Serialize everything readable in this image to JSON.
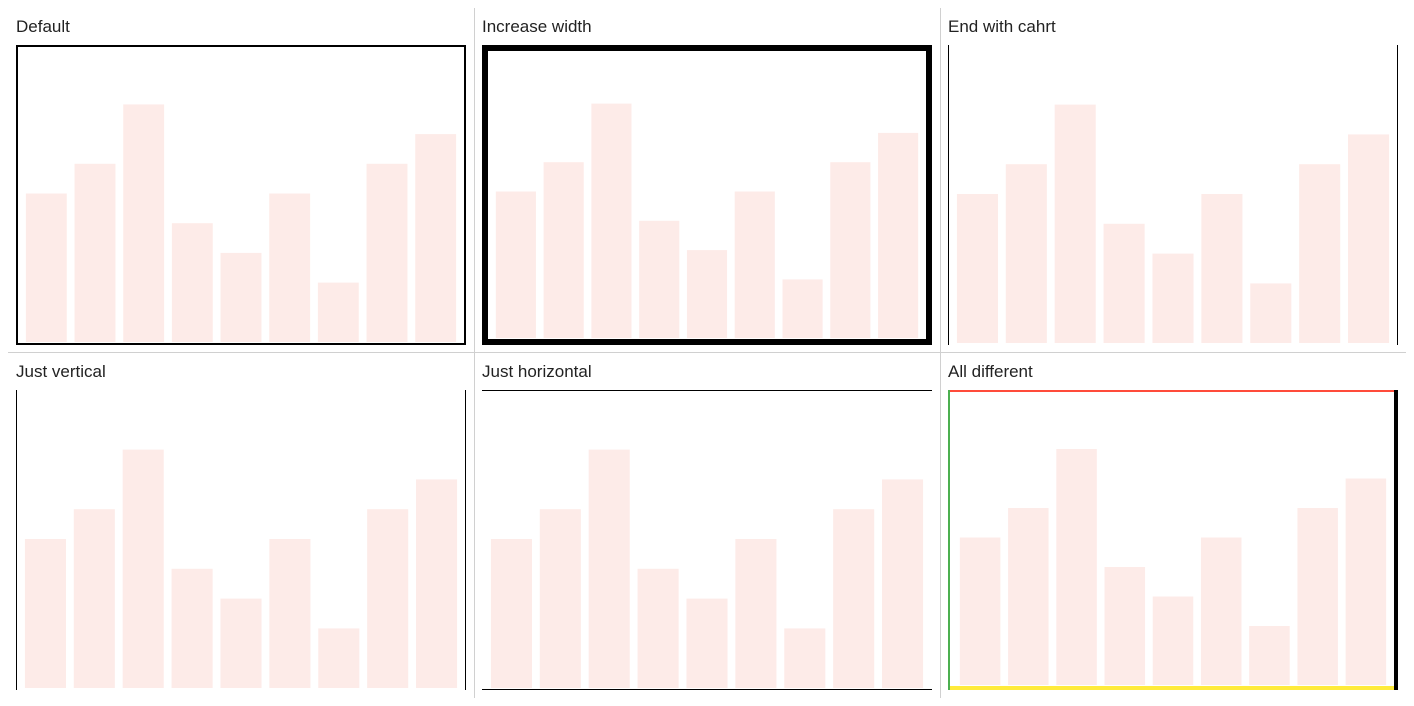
{
  "bar_color": "#fdebe8",
  "chart_data": [
    {
      "type": "bar",
      "title": "Default",
      "values": [
        5,
        6,
        8,
        4,
        3,
        5,
        2,
        6,
        7
      ],
      "ylim": [
        0,
        10
      ],
      "border": {
        "top": {
          "color": "#000000"
        },
        "right": {
          "color": "#000000"
        },
        "bottom": {
          "color": "#000000"
        },
        "left": {
          "color": "#000000"
        }
      }
    },
    {
      "type": "bar",
      "title": "Increase width",
      "values": [
        5,
        6,
        8,
        4,
        3,
        5,
        2,
        6,
        7
      ],
      "ylim": [
        0,
        10
      ],
      "border": {
        "top": {
          "color": "#000000"
        },
        "right": {
          "color": "#000000"
        },
        "bottom": {
          "color": "#000000"
        },
        "left": {
          "color": "#000000"
        }
      }
    },
    {
      "type": "bar",
      "title": "End with cahrt",
      "values": [
        5,
        6,
        8,
        4,
        3,
        5,
        2,
        6,
        7
      ],
      "ylim": [
        0,
        10
      ],
      "border": {
        "right": {
          "color": "#000000"
        },
        "left": {
          "color": "#000000"
        }
      }
    },
    {
      "type": "bar",
      "title": "Just vertical",
      "values": [
        5,
        6,
        8,
        4,
        3,
        5,
        2,
        6,
        7
      ],
      "ylim": [
        0,
        10
      ],
      "border": {
        "right": {
          "color": "#000000"
        },
        "left": {
          "color": "#000000"
        }
      }
    },
    {
      "type": "bar",
      "title": "Just horizontal",
      "values": [
        5,
        6,
        8,
        4,
        3,
        5,
        2,
        6,
        7
      ],
      "ylim": [
        0,
        10
      ],
      "border": {
        "top": {
          "color": "#000000"
        },
        "bottom": {
          "color": "#000000"
        }
      }
    },
    {
      "type": "bar",
      "title": "All different",
      "values": [
        5,
        6,
        8,
        4,
        3,
        5,
        2,
        6,
        7
      ],
      "ylim": [
        0,
        10
      ],
      "border": {
        "top": {
          "color": "#ff4b3a"
        },
        "right": {
          "color": "#000000"
        },
        "bottom": {
          "color": "#ffeb3b"
        },
        "left": {
          "color": "#4caf50"
        }
      }
    }
  ]
}
